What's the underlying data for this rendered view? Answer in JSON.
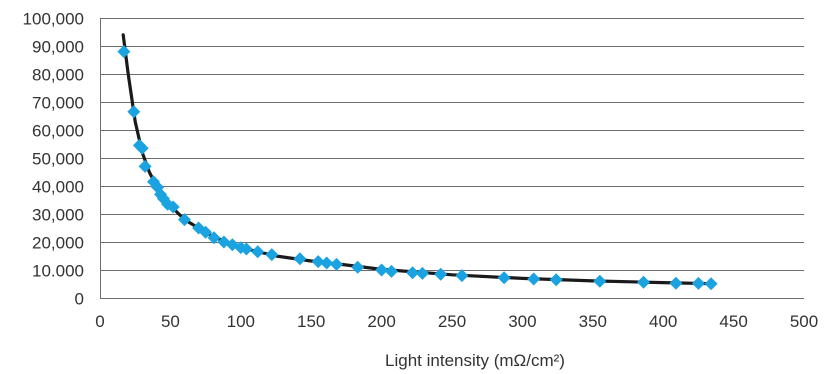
{
  "chart_data": {
    "type": "scatter",
    "title": "",
    "xlabel": "Light intensity (mΩ/cm²)",
    "ylabel": "",
    "xlim": [
      0,
      500
    ],
    "ylim": [
      0,
      100000
    ],
    "x_ticks": [
      0,
      50,
      100,
      150,
      200,
      250,
      300,
      350,
      400,
      450,
      500
    ],
    "x_tick_labels": [
      "0",
      "50",
      "100",
      "150",
      "200",
      "250",
      "300",
      "350",
      "400",
      "450",
      "500"
    ],
    "y_ticks": [
      0,
      10000,
      20000,
      30000,
      40000,
      50000,
      60000,
      70000,
      80000,
      90000,
      100000
    ],
    "y_tick_labels": [
      "0",
      "10.000",
      "20,000",
      "30,000",
      "40,000",
      "50,000",
      "60,000",
      "70,000",
      "80,000",
      "90,000",
      "100,000"
    ],
    "grid": "horizontal",
    "marker_color": "#1aa3e0",
    "curve_color": "#1a1a1a",
    "series": [
      {
        "marker": "diamond",
        "points": [
          [
            17,
            88000
          ],
          [
            24,
            66500
          ],
          [
            28,
            54500
          ],
          [
            30,
            53500
          ],
          [
            32,
            47000
          ],
          [
            38,
            41500
          ],
          [
            41,
            39500
          ],
          [
            43,
            37000
          ],
          [
            45,
            35500
          ],
          [
            48,
            33500
          ],
          [
            52,
            32500
          ],
          [
            60,
            28000
          ],
          [
            70,
            25000
          ],
          [
            75,
            23500
          ],
          [
            81,
            21500
          ],
          [
            88,
            20000
          ],
          [
            94,
            19000
          ],
          [
            100,
            18000
          ],
          [
            104,
            17500
          ],
          [
            112,
            16500
          ],
          [
            122,
            15500
          ],
          [
            142,
            14000
          ],
          [
            155,
            13000
          ],
          [
            161,
            12500
          ],
          [
            168,
            12000
          ],
          [
            183,
            11000
          ],
          [
            200,
            10000
          ],
          [
            207,
            9500
          ],
          [
            222,
            9000
          ],
          [
            229,
            8800
          ],
          [
            242,
            8500
          ],
          [
            257,
            8000
          ],
          [
            287,
            7200
          ],
          [
            308,
            6800
          ],
          [
            324,
            6500
          ],
          [
            355,
            6000
          ],
          [
            386,
            5600
          ],
          [
            409,
            5300
          ],
          [
            425,
            5200
          ],
          [
            434,
            5100
          ]
        ]
      }
    ],
    "trend_curve": [
      [
        16.5,
        94000
      ],
      [
        20,
        80000
      ],
      [
        25,
        63000
      ],
      [
        30,
        52000
      ],
      [
        35,
        45000
      ],
      [
        40,
        40000
      ],
      [
        50,
        33000
      ],
      [
        60,
        28000
      ],
      [
        80,
        22000
      ],
      [
        100,
        18000
      ],
      [
        125,
        15000
      ],
      [
        150,
        13200
      ],
      [
        175,
        11800
      ],
      [
        200,
        10200
      ],
      [
        250,
        8300
      ],
      [
        300,
        7000
      ],
      [
        350,
        6100
      ],
      [
        400,
        5500
      ],
      [
        434,
        5100
      ]
    ]
  }
}
